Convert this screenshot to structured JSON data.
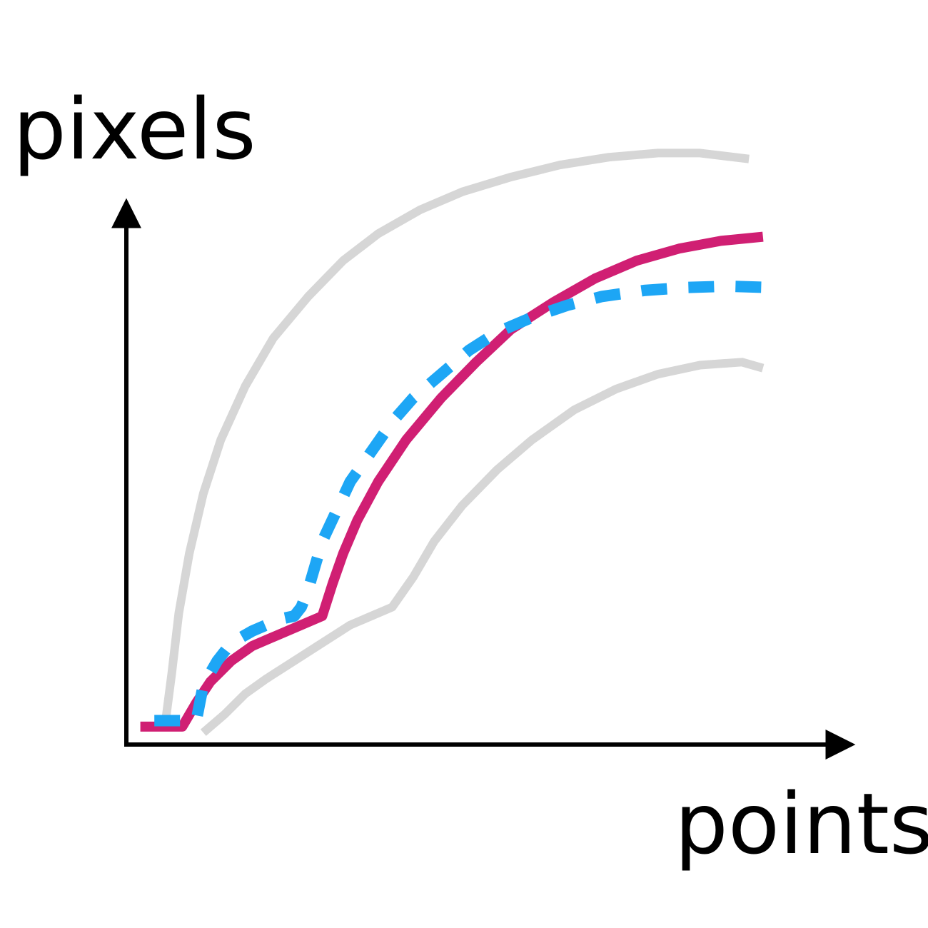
{
  "chart_data": {
    "type": "line",
    "title": "",
    "xlabel": "points",
    "ylabel": "pixels",
    "grid": false,
    "legend": "none",
    "xlim": [
      0,
      100
    ],
    "ylim": [
      0,
      100
    ],
    "series": [
      {
        "role": "upper-bound",
        "style": "solid",
        "color": "#d6d6d6",
        "points": [
          [
            5.5,
            3
          ],
          [
            6.5,
            12
          ],
          [
            7.5,
            22
          ],
          [
            9,
            32
          ],
          [
            11,
            42
          ],
          [
            13.5,
            51
          ],
          [
            17,
            60
          ],
          [
            21,
            68
          ],
          [
            26,
            75
          ],
          [
            31,
            81
          ],
          [
            36,
            85.5
          ],
          [
            42,
            89.5
          ],
          [
            48,
            92.5
          ],
          [
            55,
            95
          ],
          [
            62,
            97
          ],
          [
            69,
            98.3
          ],
          [
            76,
            99
          ],
          [
            82,
            99
          ],
          [
            89,
            98
          ]
        ]
      },
      {
        "role": "lower-bound",
        "style": "solid",
        "color": "#d6d6d6",
        "points": [
          [
            11,
            2
          ],
          [
            14,
            5
          ],
          [
            17,
            8.5
          ],
          [
            20,
            11
          ],
          [
            24,
            14
          ],
          [
            28,
            17
          ],
          [
            32,
            20
          ],
          [
            38,
            23
          ],
          [
            41,
            28
          ],
          [
            44,
            34
          ],
          [
            48,
            40
          ],
          [
            53,
            46
          ],
          [
            58,
            51
          ],
          [
            64,
            56
          ],
          [
            70,
            59.5
          ],
          [
            76,
            62
          ],
          [
            82,
            63.5
          ],
          [
            88,
            64
          ],
          [
            91,
            63
          ]
        ]
      },
      {
        "role": "fitted",
        "style": "solid",
        "color": "#d01f73",
        "points": [
          [
            2,
            3
          ],
          [
            8,
            3
          ],
          [
            10,
            7
          ],
          [
            12,
            10.5
          ],
          [
            15,
            14
          ],
          [
            18,
            16.5
          ],
          [
            21,
            18
          ],
          [
            25,
            20
          ],
          [
            28,
            21.5
          ],
          [
            29.5,
            27
          ],
          [
            31,
            32
          ],
          [
            33,
            37.5
          ],
          [
            36,
            44
          ],
          [
            40,
            51
          ],
          [
            45,
            58
          ],
          [
            50,
            64
          ],
          [
            55,
            69.5
          ],
          [
            61,
            74
          ],
          [
            67,
            78
          ],
          [
            73,
            81
          ],
          [
            79,
            83
          ],
          [
            85,
            84.3
          ],
          [
            91,
            85
          ]
        ]
      },
      {
        "role": "measured",
        "style": "dashed",
        "color": "#1da6f5",
        "points": [
          [
            4,
            4
          ],
          [
            7,
            4
          ],
          [
            10,
            4
          ],
          [
            10.5,
            7
          ],
          [
            11,
            10
          ],
          [
            13,
            14
          ],
          [
            15,
            17
          ],
          [
            18,
            19
          ],
          [
            20,
            20
          ],
          [
            22,
            21
          ],
          [
            24,
            21.5
          ],
          [
            25,
            23
          ],
          [
            26,
            26
          ],
          [
            27,
            30
          ],
          [
            28,
            34
          ],
          [
            30,
            39
          ],
          [
            32,
            44
          ],
          [
            35,
            49
          ],
          [
            38,
            54
          ],
          [
            41,
            58
          ],
          [
            45,
            62
          ],
          [
            49,
            66
          ],
          [
            53,
            69
          ],
          [
            58,
            71.5
          ],
          [
            63,
            73.5
          ],
          [
            68,
            75
          ],
          [
            74,
            76
          ],
          [
            80,
            76.5
          ],
          [
            86,
            76.7
          ],
          [
            92,
            76.5
          ]
        ]
      }
    ]
  }
}
